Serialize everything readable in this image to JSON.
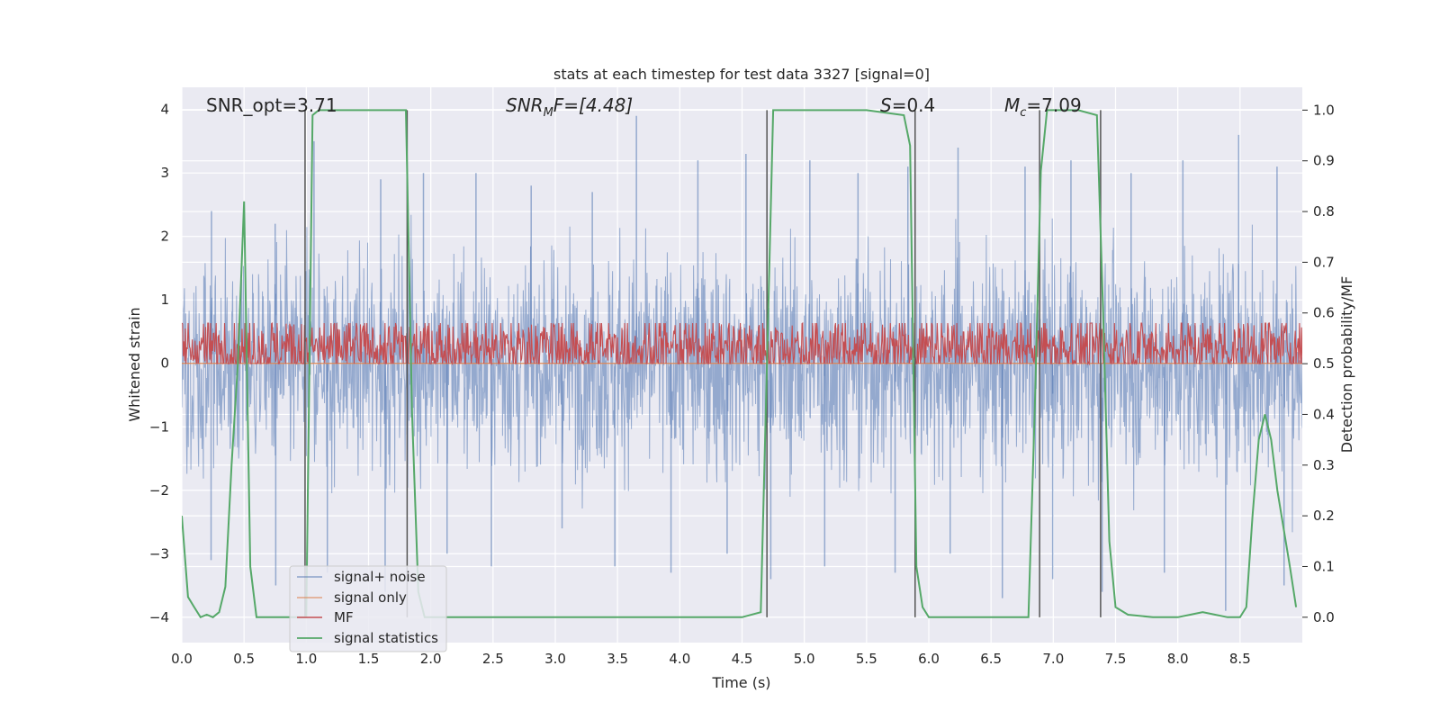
{
  "chart_data": {
    "type": "line",
    "title": "stats at each timestep for test data 3327 [signal=0]",
    "xlabel": "Time (s)",
    "ylabel": "Whitened strain",
    "ylabel_right": "Detection probability/MF",
    "xlim": [
      0.0,
      9.0
    ],
    "ylim": [
      -4.4,
      4.35
    ],
    "ylim_right": [
      -0.05,
      1.045
    ],
    "x_ticks": [
      0.0,
      0.5,
      1.0,
      1.5,
      2.0,
      2.5,
      3.0,
      3.5,
      4.0,
      4.5,
      5.0,
      5.5,
      6.0,
      6.5,
      7.0,
      7.5,
      8.0,
      8.5
    ],
    "x_tick_labels": [
      "0.0",
      "0.5",
      "1.0",
      "1.5",
      "2.0",
      "2.5",
      "3.0",
      "3.5",
      "4.0",
      "4.5",
      "5.0",
      "5.5",
      "6.0",
      "6.5",
      "7.0",
      "7.5",
      "8.0",
      "8.5"
    ],
    "y_ticks": [
      4,
      3,
      2,
      1,
      0,
      -1,
      -2,
      -3,
      -4
    ],
    "y_tick_labels": [
      "4",
      "3",
      "2",
      "1",
      "0",
      "−1",
      "−2",
      "−3",
      "−4"
    ],
    "y_ticks_right": [
      1.0,
      0.9,
      0.8,
      0.7,
      0.6,
      0.5,
      0.4,
      0.3,
      0.2,
      0.1,
      0.0
    ],
    "y_tick_labels_right": [
      "1.0",
      "0.9",
      "0.8",
      "0.7",
      "0.6",
      "0.5",
      "0.4",
      "0.3",
      "0.2",
      "0.1",
      "0.0"
    ],
    "grid": true,
    "annotations": {
      "snr_opt": "SNR_opt=3.71",
      "snr_mf_base": "SNR",
      "snr_mf_sub": "M",
      "snr_mf_rest": "F=[4.48]",
      "s_label": "S",
      "s_value": "=0.4",
      "mc_label": "M",
      "mc_sub": "c",
      "mc_value": "=7.09"
    },
    "legend": {
      "position": "lower-left",
      "entries": [
        "signal+ noise",
        "signal only",
        "MF",
        "signal statistics"
      ]
    },
    "series": [
      {
        "name": "signal+ noise",
        "color": "#4c72b0",
        "axis": "left",
        "kind": "noise",
        "band_1sigma": 0.8,
        "envelope": [
          -3.6,
          3.9
        ],
        "peak_values": [
          2.4,
          2.2,
          3.5,
          2.9,
          3.0,
          3.0,
          2.8,
          2.7,
          3.9,
          3.2,
          3.3,
          3.2,
          3.0,
          3.1,
          3.4,
          3.1,
          3.2,
          3.0,
          3.2,
          3.6,
          3.1
        ],
        "trough_values": [
          -3.1,
          -3.5,
          -3.3,
          -3.6,
          -3.0,
          -3.2,
          -2.6,
          -3.2,
          -3.3,
          -3.0,
          -3.4,
          -3.2,
          -3.3,
          -3.0,
          -3.7,
          -3.4,
          -3.6,
          -3.3,
          -3.9,
          -3.5
        ]
      },
      {
        "name": "signal only",
        "color": "#dd8452",
        "axis": "left",
        "x": [
          0.0,
          9.0
        ],
        "y": [
          0.0,
          0.0
        ]
      },
      {
        "name": "MF",
        "color": "#c44e52",
        "axis": "right",
        "kind": "noise",
        "center": 0.53,
        "spread": 0.035,
        "range": [
          0.5,
          0.58
        ]
      },
      {
        "name": "signal statistics",
        "color": "#55a868",
        "axis": "right",
        "x": [
          0.0,
          0.05,
          0.1,
          0.15,
          0.2,
          0.25,
          0.3,
          0.35,
          0.4,
          0.45,
          0.5,
          0.55,
          0.6,
          0.65,
          0.7,
          0.75,
          0.8,
          0.85,
          0.9,
          0.95,
          1.0,
          1.05,
          1.1,
          1.2,
          1.3,
          1.4,
          1.5,
          1.6,
          1.7,
          1.75,
          1.8,
          1.85,
          1.9,
          1.95,
          2.0,
          2.5,
          3.0,
          3.5,
          4.0,
          4.5,
          4.65,
          4.7,
          4.75,
          5.0,
          5.5,
          5.8,
          5.85,
          5.9,
          5.95,
          6.0,
          6.5,
          6.8,
          6.85,
          6.9,
          6.95,
          7.0,
          7.2,
          7.35,
          7.4,
          7.45,
          7.5,
          7.6,
          7.8,
          8.0,
          8.1,
          8.2,
          8.3,
          8.4,
          8.5,
          8.55,
          8.6,
          8.65,
          8.7,
          8.75,
          8.8,
          8.9,
          8.95
        ],
        "y": [
          0.2,
          0.04,
          0.02,
          0.0,
          0.005,
          0.0,
          0.01,
          0.06,
          0.3,
          0.5,
          0.82,
          0.1,
          0.0,
          0.0,
          0.0,
          0.0,
          0.0,
          0.0,
          0.0,
          0.0,
          0.0,
          0.99,
          1.0,
          1.0,
          1.0,
          1.0,
          1.0,
          1.0,
          1.0,
          1.0,
          1.0,
          0.4,
          0.05,
          0.0,
          0.0,
          0.0,
          0.0,
          0.0,
          0.0,
          0.0,
          0.01,
          0.5,
          1.0,
          1.0,
          1.0,
          0.99,
          0.93,
          0.1,
          0.02,
          0.0,
          0.0,
          0.0,
          0.4,
          0.88,
          1.0,
          1.0,
          1.0,
          0.99,
          0.6,
          0.15,
          0.02,
          0.005,
          0.0,
          0.0,
          0.005,
          0.01,
          0.005,
          0.0,
          0.0,
          0.02,
          0.2,
          0.35,
          0.4,
          0.35,
          0.25,
          0.1,
          0.02
        ]
      }
    ],
    "vertical_markers": {
      "color": "#555555",
      "x": [
        0.99,
        1.81,
        4.7,
        5.89,
        6.89,
        7.38
      ]
    }
  }
}
